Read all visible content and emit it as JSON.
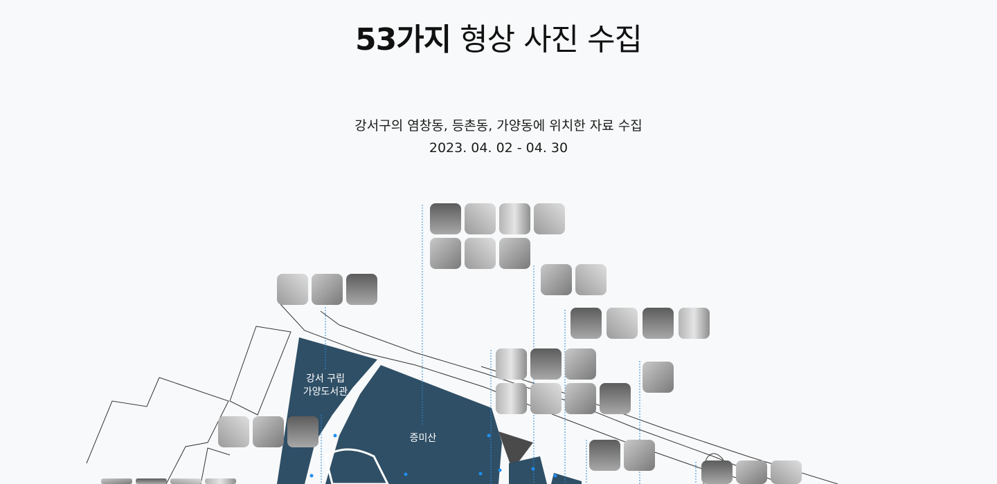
{
  "header": {
    "title_bold": "53가지",
    "title_rest": "형상 사진 수집",
    "desc_line1": "강서구의 염창동, 등촌동, 가양동에 위치한 자료 수집",
    "desc_line2": "2023. 04. 02 - 04. 30"
  },
  "map": {
    "labels": {
      "library_line1": "강서 구립",
      "library_line2": "가양도서관",
      "mountain": "증미산"
    },
    "colors": {
      "area_fill": "#2f4f66",
      "road_stroke": "#333333",
      "leader_line": "#2a8ad8",
      "dot": "#1f8ef1",
      "thumb_base": "#9a9a9a"
    }
  }
}
